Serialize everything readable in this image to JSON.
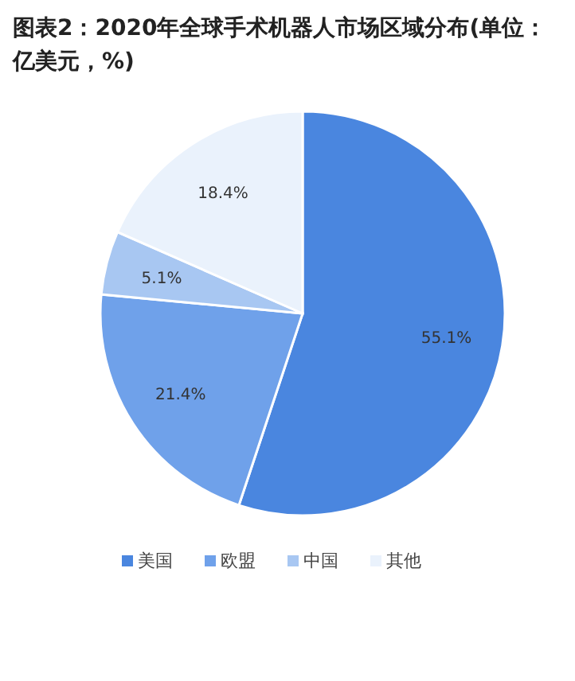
{
  "chart_data": {
    "type": "pie",
    "title": "图表2：2020年全球手术机器人市场区域分布(单位：亿美元，%)",
    "categories": [
      "美国",
      "欧盟",
      "中国",
      "其他"
    ],
    "values": [
      55.1,
      21.4,
      5.1,
      18.4
    ],
    "colors": [
      "#4a86df",
      "#6fa1ea",
      "#a8c7f2",
      "#eaf2fc"
    ],
    "value_labels": [
      "55.1%",
      "21.4%",
      "5.1%",
      "18.4%"
    ],
    "legend": "bottom"
  }
}
